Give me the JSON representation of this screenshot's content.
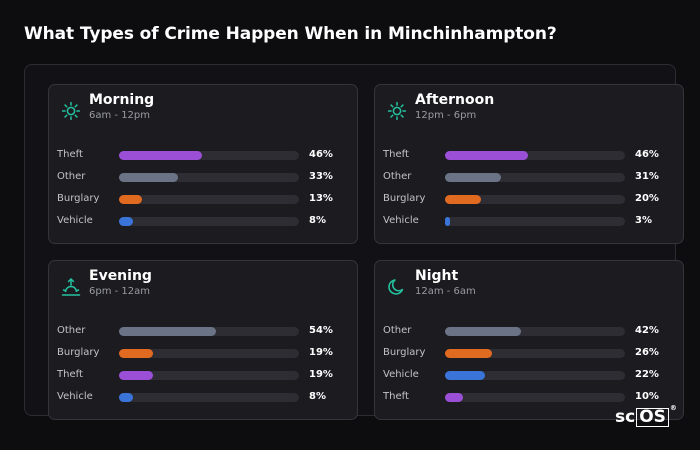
{
  "title": "What Types of Crime Happen When in Minchinhampton?",
  "logo": {
    "prefix": "sc",
    "boxed": "OS",
    "mark": "®"
  },
  "colors": {
    "theft": "#9b4fd6",
    "other": "#6b7486",
    "burglary": "#e06a1f",
    "vehicle": "#3b74d8",
    "icon": "#25c2a0"
  },
  "chart_data": {
    "type": "bar",
    "orientation": "horizontal",
    "xlim": [
      0,
      100
    ],
    "panels": [
      {
        "name": "Morning",
        "range": "6am - 12pm",
        "icon": "sun-icon",
        "bars": [
          {
            "label": "Theft",
            "value": 46,
            "value_label": "46%",
            "color_key": "theft"
          },
          {
            "label": "Other",
            "value": 33,
            "value_label": "33%",
            "color_key": "other"
          },
          {
            "label": "Burglary",
            "value": 13,
            "value_label": "13%",
            "color_key": "burglary"
          },
          {
            "label": "Vehicle",
            "value": 8,
            "value_label": "8%",
            "color_key": "vehicle"
          }
        ]
      },
      {
        "name": "Afternoon",
        "range": "12pm - 6pm",
        "icon": "sun-icon",
        "bars": [
          {
            "label": "Theft",
            "value": 46,
            "value_label": "46%",
            "color_key": "theft"
          },
          {
            "label": "Other",
            "value": 31,
            "value_label": "31%",
            "color_key": "other"
          },
          {
            "label": "Burglary",
            "value": 20,
            "value_label": "20%",
            "color_key": "burglary"
          },
          {
            "label": "Vehicle",
            "value": 3,
            "value_label": "3%",
            "color_key": "vehicle"
          }
        ]
      },
      {
        "name": "Evening",
        "range": "6pm - 12am",
        "icon": "sunset-icon",
        "bars": [
          {
            "label": "Other",
            "value": 54,
            "value_label": "54%",
            "color_key": "other"
          },
          {
            "label": "Burglary",
            "value": 19,
            "value_label": "19%",
            "color_key": "burglary"
          },
          {
            "label": "Theft",
            "value": 19,
            "value_label": "19%",
            "color_key": "theft"
          },
          {
            "label": "Vehicle",
            "value": 8,
            "value_label": "8%",
            "color_key": "vehicle"
          }
        ]
      },
      {
        "name": "Night",
        "range": "12am - 6am",
        "icon": "moon-icon",
        "bars": [
          {
            "label": "Other",
            "value": 42,
            "value_label": "42%",
            "color_key": "other"
          },
          {
            "label": "Burglary",
            "value": 26,
            "value_label": "26%",
            "color_key": "burglary"
          },
          {
            "label": "Vehicle",
            "value": 22,
            "value_label": "22%",
            "color_key": "vehicle"
          },
          {
            "label": "Theft",
            "value": 10,
            "value_label": "10%",
            "color_key": "theft"
          }
        ]
      }
    ]
  }
}
